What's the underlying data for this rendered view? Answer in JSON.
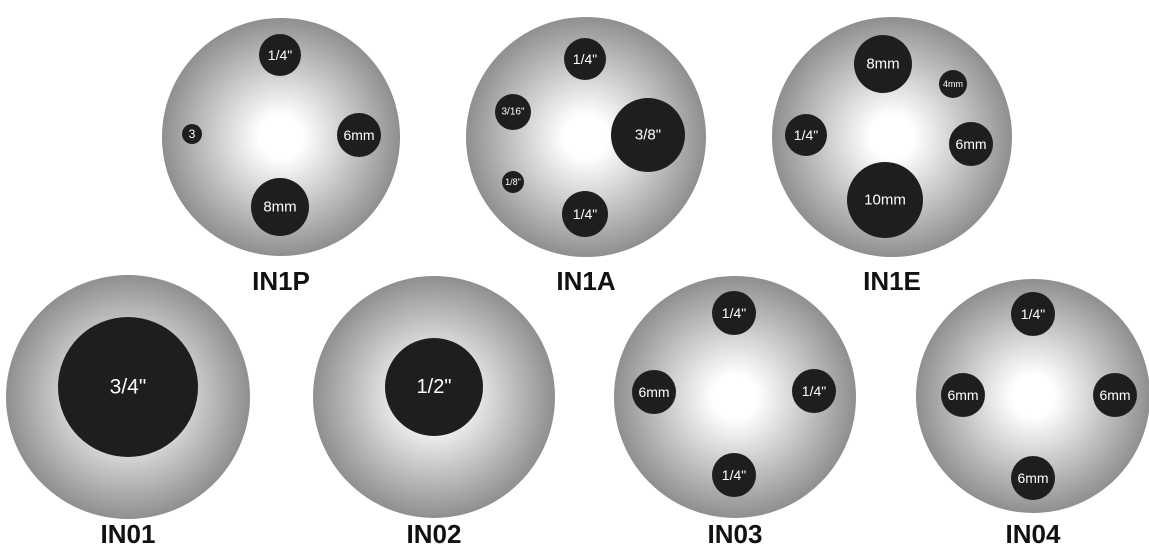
{
  "colors": {
    "disc_center": "#ffffff",
    "disc_edge": "#8f8f8f",
    "hole_fill": "#1f1d1e",
    "hole_text": "#ffffff",
    "caption": "#111111"
  },
  "plates": [
    {
      "label": "IN1P",
      "holes": [
        {
          "text": "1/4\""
        },
        {
          "text": "3"
        },
        {
          "text": "6mm"
        },
        {
          "text": "8mm"
        }
      ]
    },
    {
      "label": "IN1A",
      "holes": [
        {
          "text": "1/4\""
        },
        {
          "text": "3/16\""
        },
        {
          "text": "3/8\""
        },
        {
          "text": "1/8\""
        },
        {
          "text": "1/4\""
        }
      ]
    },
    {
      "label": "IN1E",
      "holes": [
        {
          "text": "8mm"
        },
        {
          "text": "4mm"
        },
        {
          "text": "1/4\""
        },
        {
          "text": "6mm"
        },
        {
          "text": "10mm"
        }
      ]
    },
    {
      "label": "IN01",
      "holes": [
        {
          "text": "3/4\""
        }
      ]
    },
    {
      "label": "IN02",
      "holes": [
        {
          "text": "1/2\""
        }
      ]
    },
    {
      "label": "IN03",
      "holes": [
        {
          "text": "1/4\""
        },
        {
          "text": "6mm"
        },
        {
          "text": "1/4\""
        },
        {
          "text": "1/4\""
        }
      ]
    },
    {
      "label": "IN04",
      "holes": [
        {
          "text": "1/4\""
        },
        {
          "text": "6mm"
        },
        {
          "text": "6mm"
        },
        {
          "text": "6mm"
        }
      ]
    }
  ]
}
